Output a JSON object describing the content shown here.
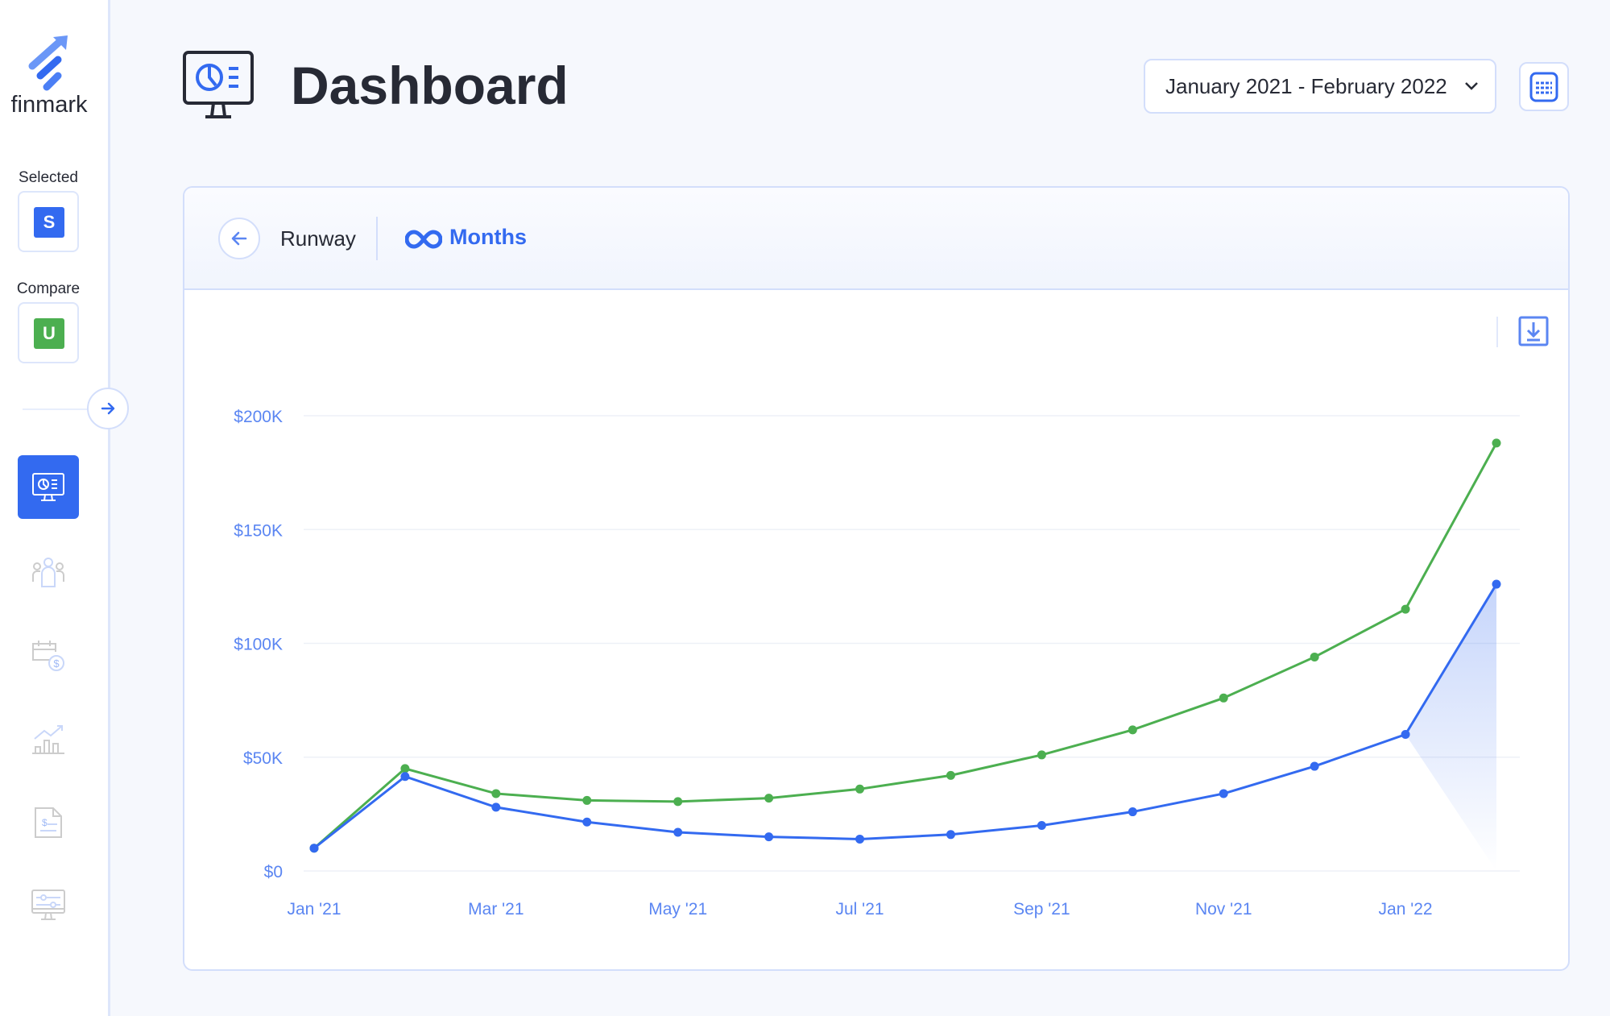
{
  "sidebar": {
    "brand": "finmark",
    "selected_label": "Selected",
    "selected_badge": "S",
    "compare_label": "Compare",
    "compare_badge": "U",
    "nav": [
      {
        "name": "dashboard",
        "icon": "dashboard-monitor-icon",
        "active": true
      },
      {
        "name": "team",
        "icon": "people-icon"
      },
      {
        "name": "billing",
        "icon": "calendar-dollar-icon"
      },
      {
        "name": "reports",
        "icon": "bar-chart-growth-icon"
      },
      {
        "name": "invoices",
        "icon": "invoice-document-icon"
      },
      {
        "name": "settings",
        "icon": "monitor-sliders-icon"
      }
    ]
  },
  "header": {
    "title": "Dashboard",
    "date_range": "January 2021 - February 2022"
  },
  "card": {
    "metric": "Runway",
    "value_label": "Months"
  },
  "colors": {
    "accent": "#336af0",
    "green": "#4caf50",
    "blue": "#336af0"
  },
  "chart_data": {
    "type": "line",
    "x": [
      "Jan '21",
      "Feb '21",
      "Mar '21",
      "Apr '21",
      "May '21",
      "Jun '21",
      "Jul '21",
      "Aug '21",
      "Sep '21",
      "Oct '21",
      "Nov '21",
      "Dec '21",
      "Jan '22",
      "Feb '22"
    ],
    "x_tick_labels": [
      "Jan '21",
      "Mar '21",
      "May '21",
      "Jul '21",
      "Sep '21",
      "Nov '21",
      "Jan '22"
    ],
    "y_ticks": [
      {
        "v": 0,
        "label": "$0"
      },
      {
        "v": 50000,
        "label": "$50K"
      },
      {
        "v": 100000,
        "label": "$100K"
      },
      {
        "v": 150000,
        "label": "$150K"
      },
      {
        "v": 200000,
        "label": "$200K"
      }
    ],
    "ylim": [
      0,
      200000
    ],
    "grid": true,
    "series": [
      {
        "name": "Compare (U)",
        "color": "#4caf50",
        "values": [
          10000,
          45000,
          34000,
          31000,
          30500,
          32000,
          36000,
          42000,
          51000,
          62000,
          76000,
          94000,
          115000,
          188000
        ]
      },
      {
        "name": "Selected (S)",
        "color": "#336af0",
        "values": [
          10000,
          41500,
          28000,
          21500,
          17000,
          15000,
          14000,
          16000,
          20000,
          26000,
          34000,
          46000,
          60000,
          126000
        ]
      }
    ]
  }
}
